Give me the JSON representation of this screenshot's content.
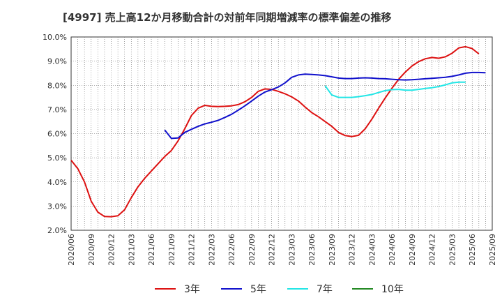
{
  "chart_data": {
    "type": "line",
    "title": "[4997]  売上高12か月移動合計の対前年同期増減率の標準偏差の推移",
    "xlabel": "",
    "ylabel": "",
    "ylim": [
      2.0,
      10.0
    ],
    "yticks": [
      "10.0%",
      "9.0%",
      "8.0%",
      "7.0%",
      "6.0%",
      "5.0%",
      "4.0%",
      "3.0%",
      "2.0%"
    ],
    "ytick_values": [
      10.0,
      9.0,
      8.0,
      7.0,
      6.0,
      5.0,
      4.0,
      3.0,
      2.0
    ],
    "xticks": [
      "2020/06",
      "2020/09",
      "2020/12",
      "2021/03",
      "2021/06",
      "2021/09",
      "2021/12",
      "2022/03",
      "2022/06",
      "2022/09",
      "2022/12",
      "2023/03",
      "2023/06",
      "2023/09",
      "2023/12",
      "2024/03",
      "2024/06",
      "2024/09",
      "2024/12",
      "2025/03",
      "2025/06",
      "2025/09"
    ],
    "x_months": [
      "2020/06",
      "2020/07",
      "2020/08",
      "2020/09",
      "2020/10",
      "2020/11",
      "2020/12",
      "2021/01",
      "2021/02",
      "2021/03",
      "2021/04",
      "2021/05",
      "2021/06",
      "2021/07",
      "2021/08",
      "2021/09",
      "2021/10",
      "2021/11",
      "2021/12",
      "2022/01",
      "2022/02",
      "2022/03",
      "2022/04",
      "2022/05",
      "2022/06",
      "2022/07",
      "2022/08",
      "2022/09",
      "2022/10",
      "2022/11",
      "2022/12",
      "2023/01",
      "2023/02",
      "2023/03",
      "2023/04",
      "2023/05",
      "2023/06",
      "2023/07",
      "2023/08",
      "2023/09",
      "2023/10",
      "2023/11",
      "2023/12",
      "2024/01",
      "2024/02",
      "2024/03",
      "2024/04",
      "2024/05",
      "2024/06",
      "2024/07",
      "2024/08",
      "2024/09",
      "2024/10",
      "2024/11",
      "2024/12",
      "2025/01",
      "2025/02",
      "2025/03",
      "2025/04",
      "2025/05",
      "2025/06"
    ],
    "series": [
      {
        "name": "3年",
        "color": "#dd1111",
        "start": "2020/06",
        "values": [
          4.9,
          4.55,
          4.0,
          3.2,
          2.75,
          2.57,
          2.56,
          2.6,
          2.85,
          3.35,
          3.8,
          4.15,
          4.45,
          4.75,
          5.05,
          5.3,
          5.7,
          6.2,
          6.75,
          7.05,
          7.17,
          7.13,
          7.12,
          7.13,
          7.15,
          7.2,
          7.32,
          7.5,
          7.75,
          7.85,
          7.83,
          7.75,
          7.65,
          7.52,
          7.35,
          7.1,
          6.87,
          6.7,
          6.5,
          6.3,
          6.05,
          5.92,
          5.88,
          5.93,
          6.2,
          6.6,
          7.05,
          7.48,
          7.88,
          8.25,
          8.55,
          8.8,
          8.98,
          9.1,
          9.15,
          9.12,
          9.18,
          9.33,
          9.55,
          9.6,
          9.52,
          9.3
        ]
      },
      {
        "name": "5年",
        "color": "#1111cc",
        "start": "2021/08",
        "values": [
          6.15,
          5.8,
          5.82,
          6.05,
          6.18,
          6.3,
          6.4,
          6.47,
          6.55,
          6.67,
          6.8,
          6.97,
          7.15,
          7.35,
          7.55,
          7.72,
          7.82,
          7.93,
          8.1,
          8.33,
          8.43,
          8.46,
          8.45,
          8.43,
          8.4,
          8.35,
          8.3,
          8.28,
          8.28,
          8.3,
          8.31,
          8.3,
          8.28,
          8.27,
          8.25,
          8.23,
          8.22,
          8.23,
          8.25,
          8.27,
          8.29,
          8.31,
          8.33,
          8.37,
          8.43,
          8.5,
          8.53,
          8.53,
          8.52
        ]
      },
      {
        "name": "7年",
        "color": "#22e6e6",
        "start": "2023/08",
        "values": [
          7.98,
          7.6,
          7.5,
          7.5,
          7.5,
          7.53,
          7.57,
          7.62,
          7.7,
          7.78,
          7.82,
          7.83,
          7.8,
          7.8,
          7.83,
          7.87,
          7.9,
          7.95,
          8.02,
          8.1,
          8.13,
          8.13
        ]
      },
      {
        "name": "10年",
        "color": "#228822",
        "start": "2020/06",
        "values": []
      }
    ]
  }
}
